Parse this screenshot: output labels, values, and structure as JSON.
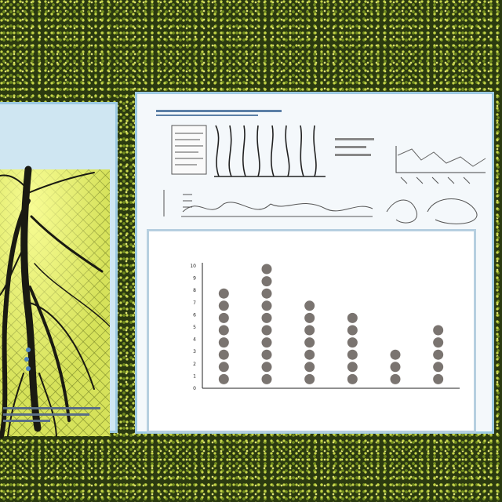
{
  "chart_data": {
    "type": "scatter",
    "title": "",
    "xlabel": "",
    "ylabel": "",
    "categories": [
      "",
      "",
      "",
      "",
      "",
      ""
    ],
    "values": [
      8,
      10,
      7,
      6,
      3,
      5
    ],
    "yticks": [
      "0",
      "1",
      "2",
      "3",
      "4",
      "5",
      "6",
      "7",
      "8",
      "9",
      "10"
    ],
    "ylim": [
      0,
      10
    ],
    "grid": false,
    "legend": "none",
    "marker_color": "#7a7470",
    "axis_color": "#222222"
  },
  "colors": {
    "background": "#2b3a10",
    "panel_border": "#9cc9e2",
    "leaf_yellow": "#dfe86a",
    "root_dark": "#1a1a12"
  }
}
